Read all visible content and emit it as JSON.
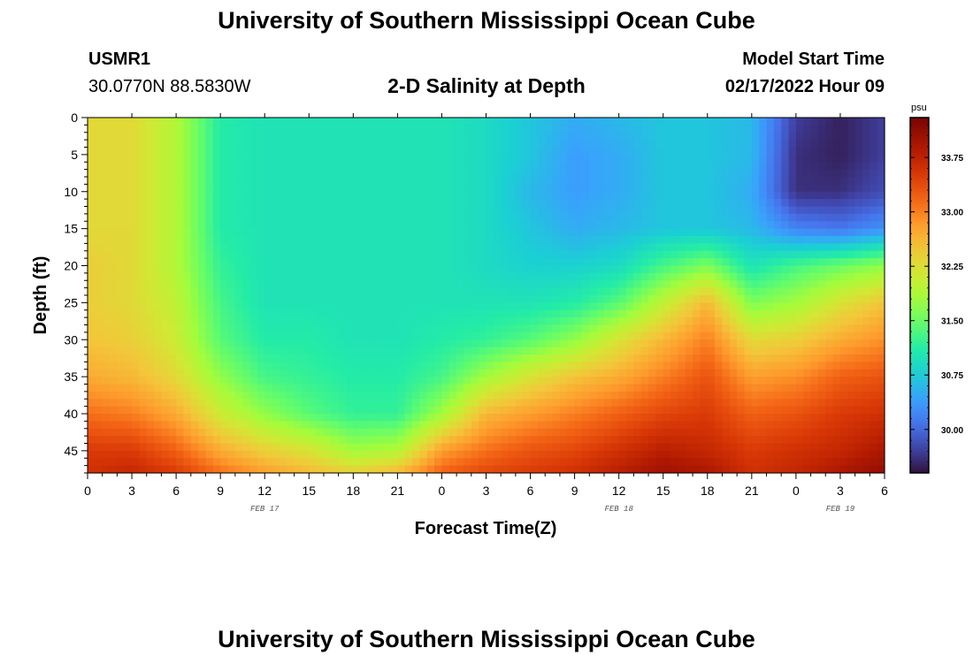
{
  "header": {
    "title": "University of Southern Mississippi Ocean Cube",
    "station_id": "USMR1",
    "station_coords": "30.0770N  88.5830W",
    "chart_title": "2-D Salinity at Depth",
    "model_start_label": "Model Start Time",
    "model_start_value": "02/17/2022 Hour 09"
  },
  "footer": {
    "title": "University of Southern Mississippi Ocean Cube"
  },
  "chart_data": {
    "type": "heatmap",
    "title": "2-D Salinity at Depth",
    "xlabel": "Forecast Time(Z)",
    "ylabel": "Depth (ft)",
    "x_tick_labels": [
      "0",
      "3",
      "6",
      "9",
      "12",
      "15",
      "18",
      "21",
      "0",
      "3",
      "6",
      "9",
      "12",
      "15",
      "18",
      "21",
      "0",
      "3",
      "6"
    ],
    "x_range_hours": [
      0,
      54
    ],
    "date_labels": [
      {
        "text": "FEB 17",
        "hour": 12
      },
      {
        "text": "FEB 18",
        "hour": 36
      },
      {
        "text": "FEB 19",
        "hour": 51
      }
    ],
    "y_ticks": [
      0,
      5,
      10,
      15,
      20,
      25,
      30,
      35,
      40,
      45
    ],
    "y_range": [
      0,
      48
    ],
    "y_reversed": true,
    "colorbar": {
      "unit": "psu",
      "ticks": [
        30.0,
        30.75,
        31.5,
        32.25,
        33.0,
        33.75
      ],
      "tick_labels": [
        "30.00",
        "30.75",
        "31.50",
        "32.25",
        "33.00",
        "33.75"
      ],
      "range": [
        29.4,
        34.3
      ]
    },
    "grid": false,
    "columns_hour": [
      0,
      3,
      6,
      9,
      12,
      15,
      18,
      21,
      24,
      27,
      30,
      33,
      36,
      39,
      42,
      45,
      48,
      51,
      54
    ],
    "rows_depth": [
      0,
      5,
      10,
      15,
      20,
      25,
      30,
      35,
      40,
      45,
      48
    ],
    "salinity": [
      [
        32.3,
        32.3,
        31.9,
        31.1,
        31.0,
        31.0,
        31.0,
        31.0,
        31.0,
        30.9,
        30.7,
        30.5,
        30.6,
        30.7,
        30.7,
        30.6,
        29.7,
        29.5,
        29.7
      ],
      [
        32.3,
        32.3,
        31.9,
        31.1,
        31.0,
        31.0,
        31.0,
        31.0,
        31.0,
        30.9,
        30.7,
        30.4,
        30.5,
        30.7,
        30.7,
        30.6,
        29.6,
        29.5,
        29.7
      ],
      [
        32.3,
        32.3,
        31.9,
        31.1,
        31.0,
        31.0,
        31.0,
        31.0,
        31.0,
        30.9,
        30.6,
        30.4,
        30.5,
        30.7,
        30.7,
        30.5,
        29.6,
        29.6,
        29.8
      ],
      [
        32.3,
        32.3,
        31.9,
        31.1,
        31.0,
        31.0,
        31.0,
        31.0,
        31.0,
        30.9,
        30.7,
        30.5,
        30.6,
        30.7,
        30.7,
        30.6,
        30.2,
        30.1,
        30.3
      ],
      [
        32.4,
        32.3,
        31.9,
        31.2,
        31.0,
        31.0,
        31.0,
        31.0,
        31.0,
        30.9,
        30.8,
        30.8,
        30.9,
        31.3,
        31.6,
        31.0,
        31.3,
        31.5,
        31.7
      ],
      [
        32.4,
        32.3,
        32.0,
        31.3,
        31.0,
        31.0,
        31.0,
        31.0,
        31.0,
        31.0,
        31.0,
        31.1,
        31.4,
        32.0,
        32.6,
        31.6,
        31.8,
        32.2,
        32.5
      ],
      [
        32.5,
        32.4,
        32.1,
        31.4,
        31.1,
        31.1,
        31.0,
        31.0,
        31.1,
        31.2,
        31.4,
        31.7,
        32.2,
        32.6,
        33.0,
        32.3,
        32.4,
        32.7,
        32.9
      ],
      [
        32.7,
        32.6,
        32.3,
        31.7,
        31.3,
        31.2,
        31.1,
        31.1,
        31.3,
        31.8,
        32.2,
        32.5,
        32.7,
        33.0,
        33.3,
        32.8,
        32.9,
        33.2,
        33.3
      ],
      [
        33.1,
        33.0,
        32.7,
        32.1,
        31.7,
        31.4,
        31.2,
        31.2,
        31.8,
        32.6,
        32.8,
        33.0,
        33.2,
        33.4,
        33.5,
        33.2,
        33.3,
        33.5,
        33.6
      ],
      [
        33.5,
        33.5,
        33.2,
        32.7,
        32.4,
        32.2,
        31.8,
        31.9,
        32.8,
        33.1,
        33.3,
        33.4,
        33.6,
        33.8,
        33.7,
        33.5,
        33.6,
        33.7,
        33.9
      ],
      [
        33.6,
        33.7,
        33.5,
        33.1,
        32.8,
        32.6,
        32.4,
        32.6,
        33.2,
        33.4,
        33.5,
        33.6,
        33.8,
        34.0,
        33.9,
        33.6,
        33.7,
        33.9,
        34.1
      ]
    ]
  }
}
